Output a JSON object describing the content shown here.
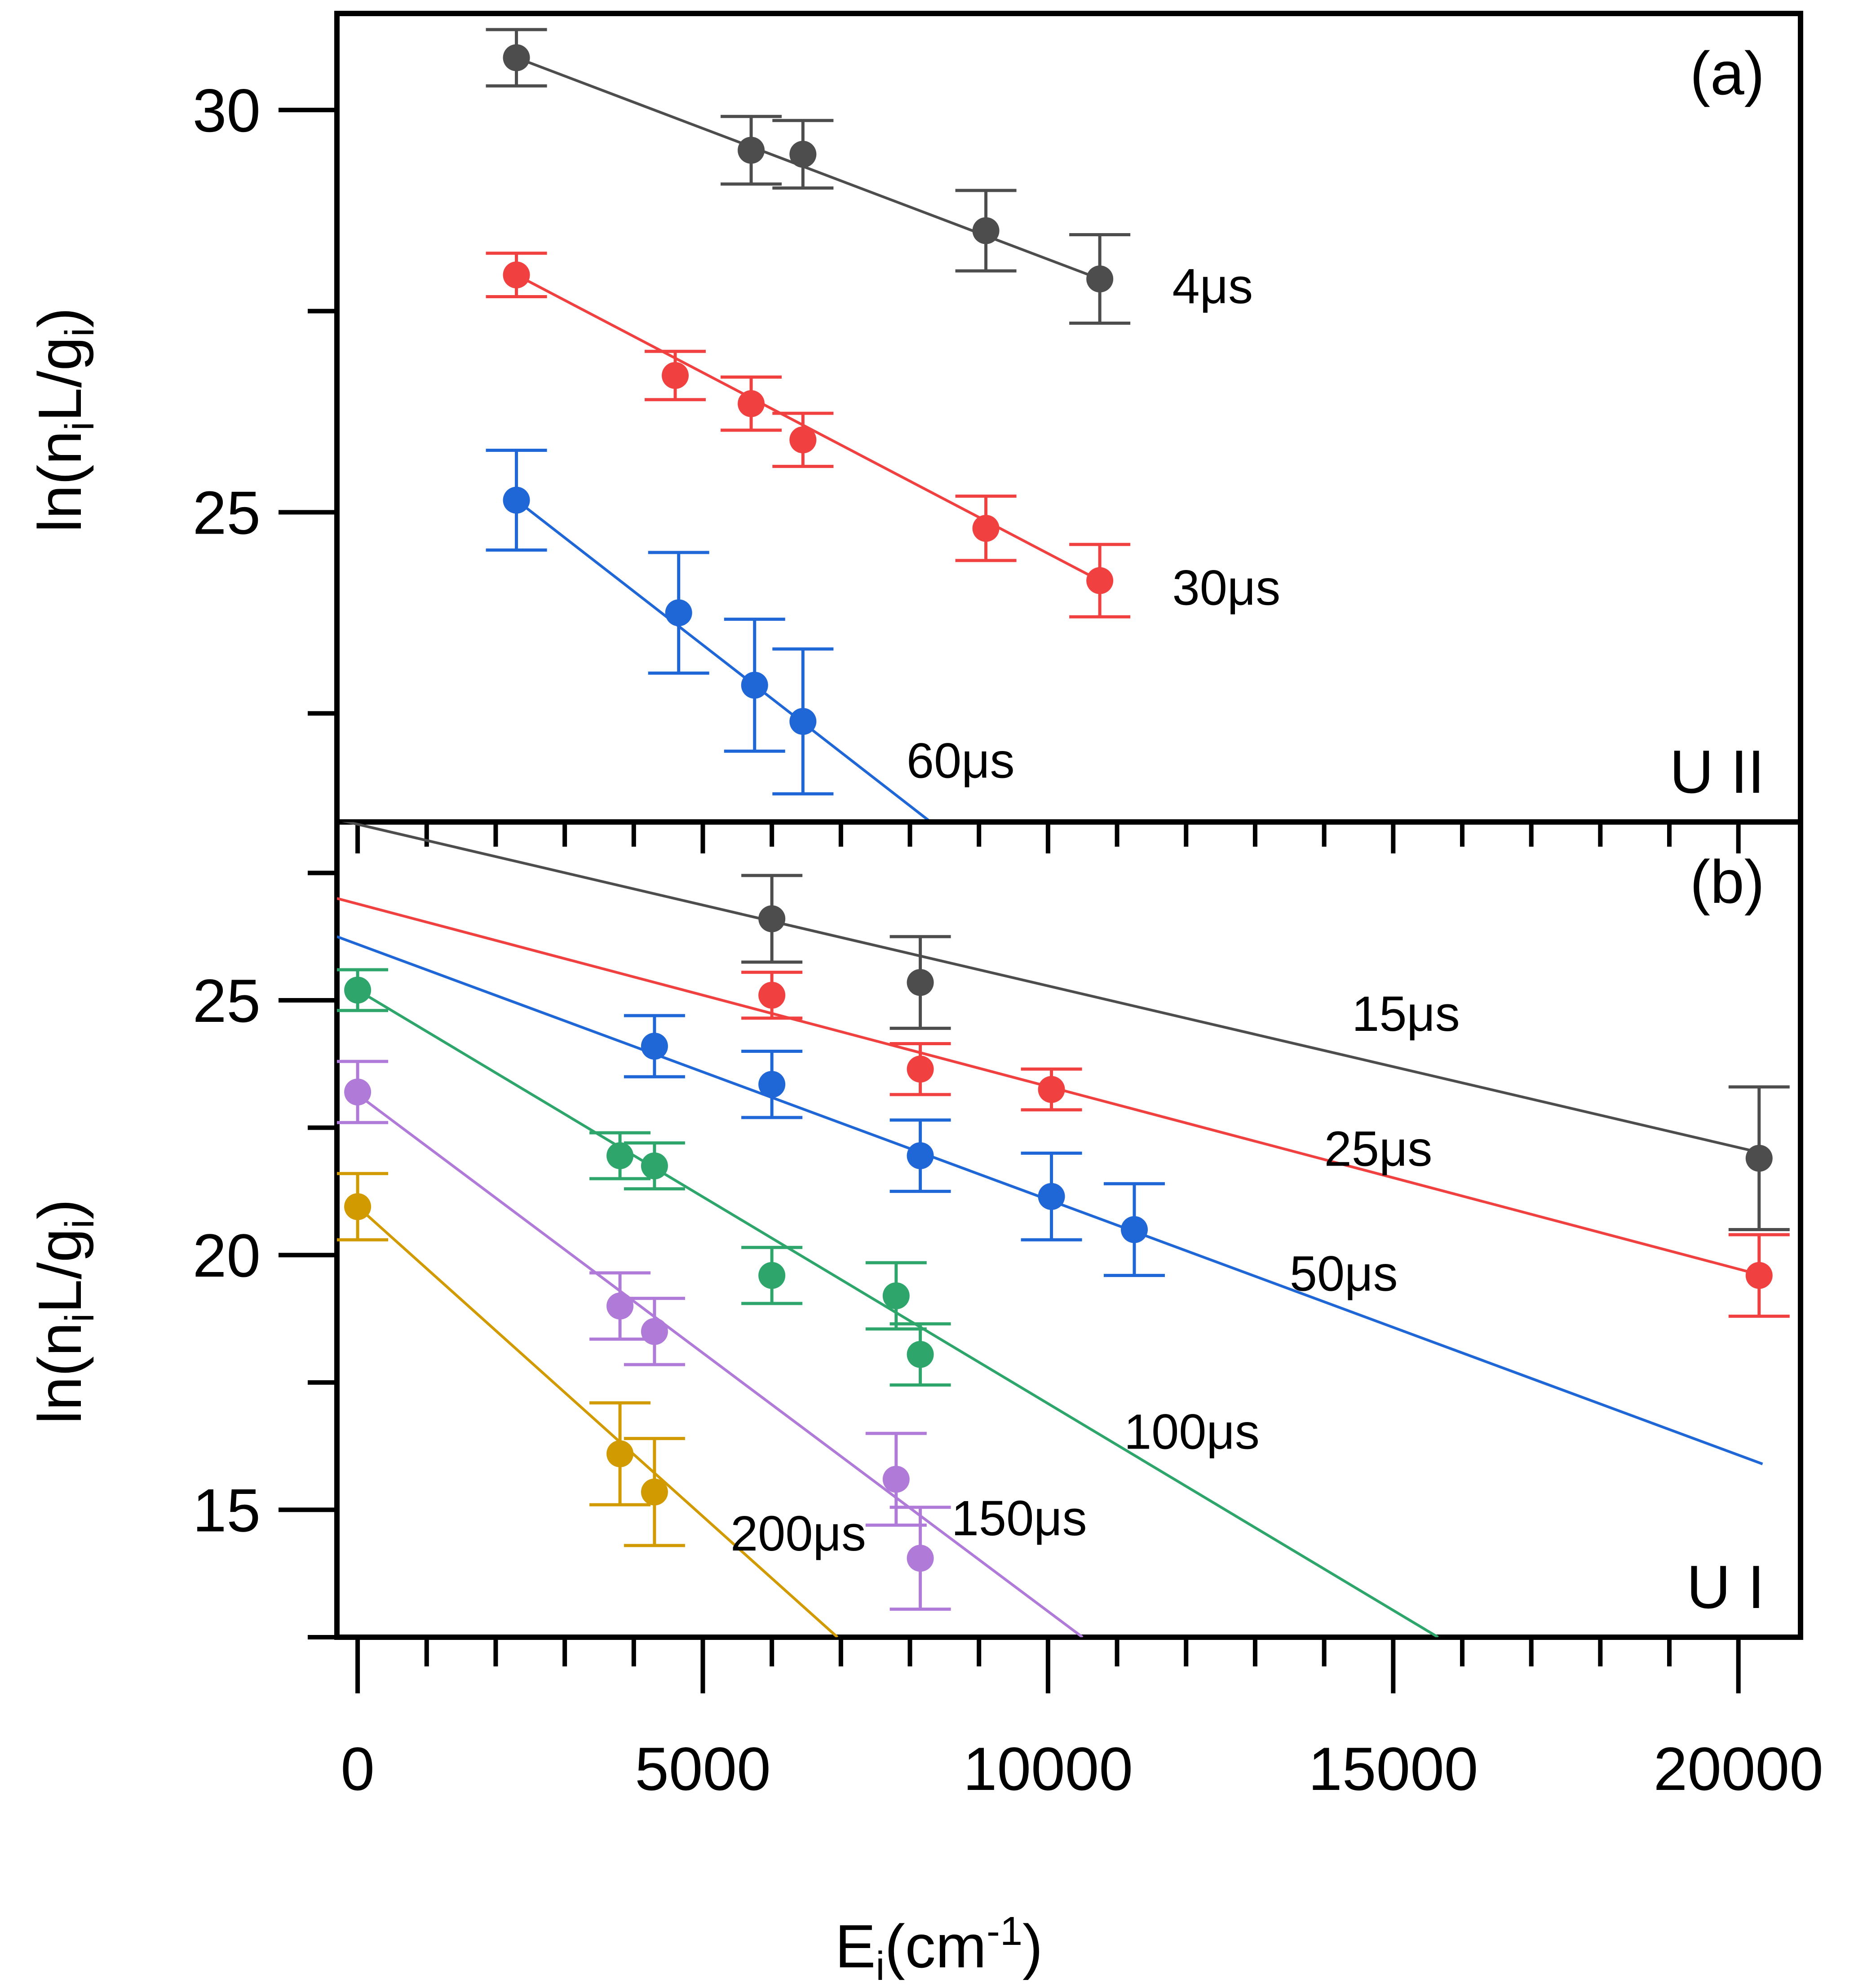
{
  "figure": {
    "xlabel": "E",
    "xlabel_sub": "i",
    "xlabel_unit": "(cm",
    "xlabel_exp": "-1",
    "xlabel_close": ")",
    "ylabel_parts": [
      "ln(n",
      "i",
      "L/g",
      "i",
      ")"
    ]
  },
  "colors": {
    "4us": "#4d4d4d",
    "30us": "#f04040",
    "60us": "#1f66d6",
    "15us": "#4d4d4d",
    "25us": "#f04040",
    "50us": "#1f66d6",
    "100us": "#2ea66b",
    "150us": "#b07ad9",
    "200us": "#d19a00"
  },
  "chart_data": [
    {
      "type": "scatter",
      "panel_label": "(a)",
      "species_label": "U II",
      "xlabel": "Ei(cm-1)",
      "ylabel": "ln(niL/gi)",
      "xlim": [
        -300,
        20900
      ],
      "ylim": [
        21.15,
        31.2
      ],
      "y_ticks": [
        30,
        25
      ],
      "y_minor_ticks": [
        27.5,
        22.5
      ],
      "x_ticks": [
        0,
        5000,
        10000,
        15000,
        20000
      ],
      "series": [
        {
          "name": "4μs",
          "color_key": "4us",
          "points": [
            {
              "x": 2300,
              "y": 30.65,
              "err": 0.35
            },
            {
              "x": 5700,
              "y": 29.5,
              "err": 0.42
            },
            {
              "x": 6450,
              "y": 29.45,
              "err": 0.42
            },
            {
              "x": 9100,
              "y": 28.5,
              "err": 0.5
            },
            {
              "x": 10750,
              "y": 27.9,
              "err": 0.55
            }
          ],
          "fit": [
            [
              2300,
              30.65
            ],
            [
              10750,
              27.9
            ]
          ],
          "label_at": [
            11800,
            27.6
          ]
        },
        {
          "name": "30μs",
          "color_key": "30us",
          "points": [
            {
              "x": 2300,
              "y": 27.95,
              "err": 0.27
            },
            {
              "x": 4600,
              "y": 26.7,
              "err": 0.3
            },
            {
              "x": 5700,
              "y": 26.35,
              "err": 0.33
            },
            {
              "x": 6450,
              "y": 25.9,
              "err": 0.33
            },
            {
              "x": 9100,
              "y": 24.8,
              "err": 0.4
            },
            {
              "x": 10750,
              "y": 24.15,
              "err": 0.45
            }
          ],
          "fit": [
            [
              2300,
              27.95
            ],
            [
              10750,
              24.15
            ]
          ],
          "label_at": [
            11800,
            23.85
          ]
        },
        {
          "name": "60μs",
          "color_key": "60us",
          "points": [
            {
              "x": 2300,
              "y": 25.15,
              "err": 0.62
            },
            {
              "x": 4650,
              "y": 23.75,
              "err": 0.75
            },
            {
              "x": 5750,
              "y": 22.85,
              "err": 0.82
            },
            {
              "x": 6450,
              "y": 22.4,
              "err": 0.9
            }
          ],
          "fit": [
            [
              2300,
              25.15
            ],
            [
              8300,
              21.15
            ]
          ],
          "label_at": [
            7950,
            21.7
          ]
        }
      ]
    },
    {
      "type": "scatter",
      "panel_label": "(b)",
      "species_label": "U I",
      "xlabel": "Ei(cm-1)",
      "ylabel": "ln(niL/gi)",
      "xlim": [
        -300,
        20900
      ],
      "ylim": [
        12.5,
        28.5
      ],
      "y_ticks": [
        25,
        20,
        15
      ],
      "y_minor_ticks": [
        27.5,
        22.5,
        17.5,
        12.5
      ],
      "x_ticks": [
        0,
        5000,
        10000,
        15000,
        20000
      ],
      "series": [
        {
          "name": "15μs",
          "color_key": "15us",
          "points": [
            {
              "x": 6000,
              "y": 26.6,
              "err": 0.85
            },
            {
              "x": 8150,
              "y": 25.35,
              "err": 0.9
            },
            {
              "x": 20300,
              "y": 21.9,
              "err": 1.4
            }
          ],
          "fit": [
            [
              -300,
              28.55
            ],
            [
              20350,
              22.0
            ]
          ],
          "label_at": [
            14400,
            24.4
          ]
        },
        {
          "name": "25μs",
          "color_key": "25us",
          "points": [
            {
              "x": 6000,
              "y": 25.1,
              "err": 0.45
            },
            {
              "x": 8150,
              "y": 23.65,
              "err": 0.5
            },
            {
              "x": 10050,
              "y": 23.25,
              "err": 0.4
            },
            {
              "x": 20300,
              "y": 19.6,
              "err": 0.8
            }
          ],
          "fit": [
            [
              -300,
              27.0
            ],
            [
              20350,
              19.6
            ]
          ],
          "label_at": [
            14000,
            21.75
          ]
        },
        {
          "name": "50μs",
          "color_key": "50us",
          "points": [
            {
              "x": 4300,
              "y": 24.1,
              "err": 0.6
            },
            {
              "x": 6000,
              "y": 23.35,
              "err": 0.65
            },
            {
              "x": 8150,
              "y": 21.95,
              "err": 0.7
            },
            {
              "x": 10050,
              "y": 21.15,
              "err": 0.85
            },
            {
              "x": 11250,
              "y": 20.5,
              "err": 0.9
            }
          ],
          "fit": [
            [
              -300,
              26.25
            ],
            [
              20350,
              15.9
            ]
          ],
          "label_at": [
            13500,
            19.3
          ]
        },
        {
          "name": "100μs",
          "color_key": "100us",
          "points": [
            {
              "x": 0,
              "y": 25.2,
              "err": 0.4
            },
            {
              "x": 3800,
              "y": 21.95,
              "err": 0.45
            },
            {
              "x": 4300,
              "y": 21.75,
              "err": 0.45
            },
            {
              "x": 6000,
              "y": 19.6,
              "err": 0.55
            },
            {
              "x": 7800,
              "y": 19.2,
              "err": 0.65
            },
            {
              "x": 8150,
              "y": 18.05,
              "err": 0.6
            }
          ],
          "fit": [
            [
              0,
              25.2
            ],
            [
              15650,
              12.5
            ]
          ],
          "label_at": [
            11100,
            16.2
          ]
        },
        {
          "name": "150μs",
          "color_key": "150us",
          "points": [
            {
              "x": 0,
              "y": 23.2,
              "err": 0.6
            },
            {
              "x": 3800,
              "y": 19.0,
              "err": 0.65
            },
            {
              "x": 4300,
              "y": 18.5,
              "err": 0.65
            },
            {
              "x": 7800,
              "y": 15.6,
              "err": 0.9
            },
            {
              "x": 8150,
              "y": 14.05,
              "err": 1.0
            }
          ],
          "fit": [
            [
              0,
              23.15
            ],
            [
              10500,
              12.5
            ]
          ],
          "label_at": [
            8600,
            14.5
          ]
        },
        {
          "name": "200μs",
          "color_key": "200us",
          "points": [
            {
              "x": 0,
              "y": 20.95,
              "err": 0.65
            },
            {
              "x": 3800,
              "y": 16.1,
              "err": 1.0
            },
            {
              "x": 4300,
              "y": 15.35,
              "err": 1.05
            }
          ],
          "fit": [
            [
              0,
              20.95
            ],
            [
              6950,
              12.5
            ]
          ],
          "label_at": [
            5400,
            14.2
          ]
        }
      ]
    }
  ]
}
